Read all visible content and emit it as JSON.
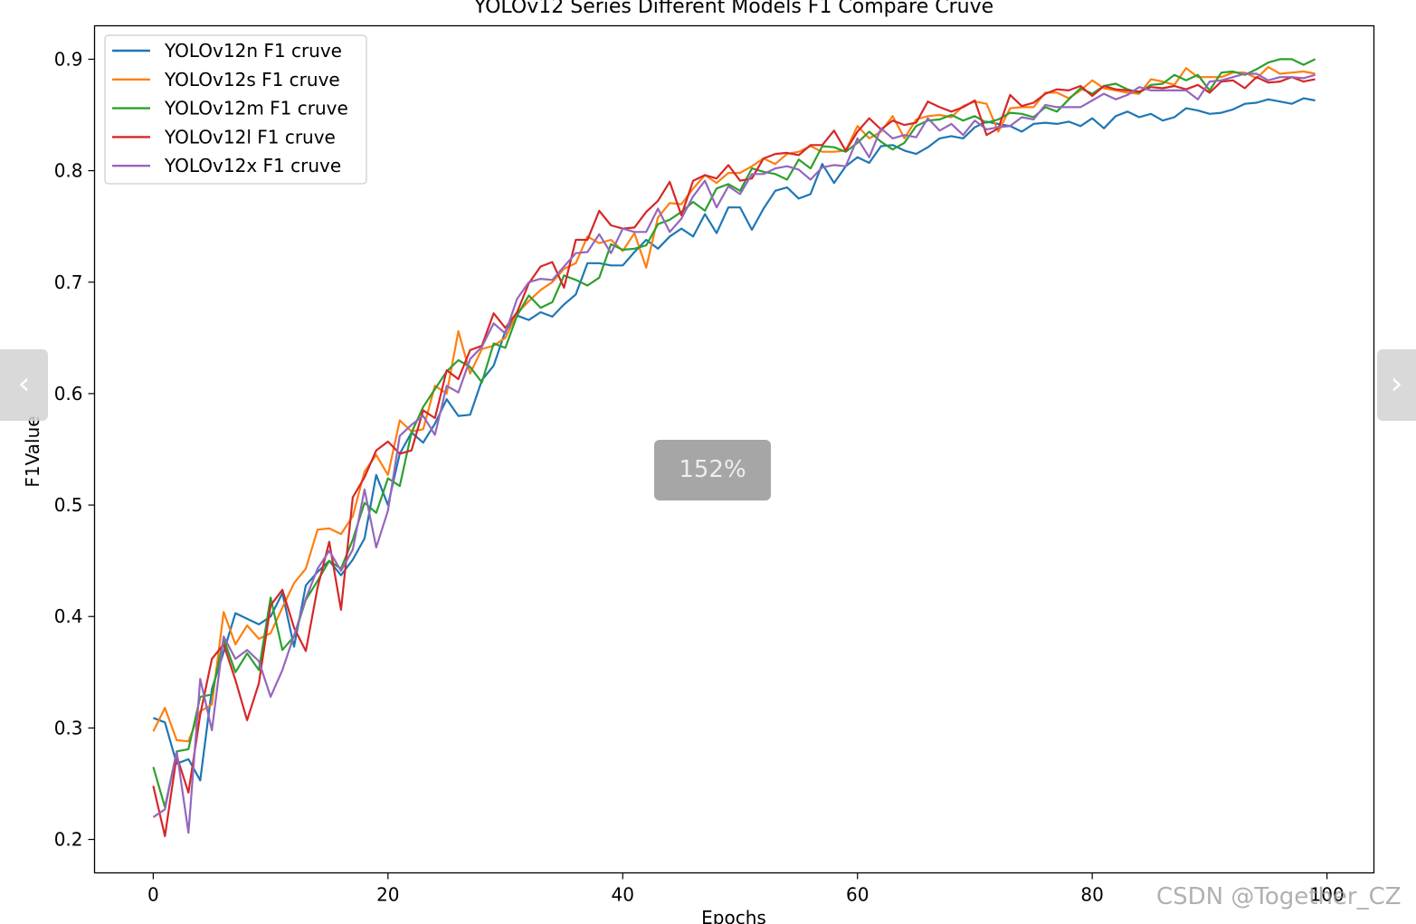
{
  "viewer": {
    "prev_arrow": "‹",
    "next_arrow": "›",
    "zoom_label": "152%",
    "watermark": "CSDN @Together_CZ"
  },
  "chart_data": {
    "type": "line",
    "title": "YOLOv12 Series Different Models F1 Compare Cruve",
    "xlabel": "Epochs",
    "ylabel": "F1Value",
    "xlim": [
      -5,
      104
    ],
    "ylim": [
      0.17,
      0.93
    ],
    "xticks": [
      0,
      20,
      40,
      60,
      80,
      100
    ],
    "yticks": [
      0.2,
      0.3,
      0.4,
      0.5,
      0.6,
      0.7,
      0.8,
      0.9
    ],
    "grid": false,
    "legend_position": "upper-left",
    "x": [
      0,
      1,
      2,
      3,
      4,
      5,
      6,
      7,
      8,
      9,
      10,
      11,
      12,
      13,
      14,
      15,
      16,
      17,
      18,
      19,
      20,
      21,
      22,
      23,
      24,
      25,
      26,
      27,
      28,
      29,
      30,
      31,
      32,
      33,
      34,
      35,
      36,
      37,
      38,
      39,
      40,
      41,
      42,
      43,
      44,
      45,
      46,
      47,
      48,
      49,
      50,
      51,
      52,
      53,
      54,
      55,
      56,
      57,
      58,
      59,
      60,
      61,
      62,
      63,
      64,
      65,
      66,
      67,
      68,
      69,
      70,
      71,
      72,
      73,
      74,
      75,
      76,
      77,
      78,
      79,
      80,
      81,
      82,
      83,
      84,
      85,
      86,
      87,
      88,
      89,
      90,
      91,
      92,
      93,
      94,
      95,
      96,
      97,
      98,
      99
    ],
    "series": [
      {
        "name": "YOLOv12n F1 cruve",
        "color": "#1f77b4",
        "values": [
          0.309,
          0.305,
          0.268,
          0.272,
          0.253,
          0.335,
          0.368,
          0.403,
          0.398,
          0.393,
          0.4,
          0.421,
          0.373,
          0.428,
          0.44,
          0.45,
          0.437,
          0.451,
          0.47,
          0.527,
          0.5,
          0.546,
          0.565,
          0.556,
          0.573,
          0.595,
          0.58,
          0.581,
          0.612,
          0.625,
          0.656,
          0.67,
          0.666,
          0.673,
          0.669,
          0.68,
          0.689,
          0.717,
          0.717,
          0.715,
          0.715,
          0.727,
          0.738,
          0.73,
          0.741,
          0.748,
          0.741,
          0.761,
          0.744,
          0.767,
          0.767,
          0.747,
          0.766,
          0.782,
          0.785,
          0.775,
          0.779,
          0.806,
          0.789,
          0.804,
          0.812,
          0.807,
          0.822,
          0.823,
          0.818,
          0.815,
          0.821,
          0.829,
          0.831,
          0.829,
          0.839,
          0.844,
          0.842,
          0.84,
          0.835,
          0.842,
          0.843,
          0.842,
          0.844,
          0.84,
          0.847,
          0.838,
          0.849,
          0.853,
          0.848,
          0.851,
          0.845,
          0.848,
          0.856,
          0.854,
          0.851,
          0.852,
          0.855,
          0.86,
          0.861,
          0.864,
          0.862,
          0.86,
          0.865,
          0.863
        ]
      },
      {
        "name": "YOLOv12s F1 cruve",
        "color": "#ff7f0e",
        "values": [
          0.297,
          0.318,
          0.289,
          0.288,
          0.315,
          0.321,
          0.404,
          0.375,
          0.392,
          0.38,
          0.385,
          0.408,
          0.43,
          0.443,
          0.478,
          0.479,
          0.474,
          0.49,
          0.53,
          0.545,
          0.527,
          0.576,
          0.566,
          0.568,
          0.607,
          0.6,
          0.656,
          0.618,
          0.64,
          0.643,
          0.65,
          0.672,
          0.683,
          0.693,
          0.7,
          0.712,
          0.717,
          0.741,
          0.735,
          0.738,
          0.728,
          0.744,
          0.713,
          0.758,
          0.771,
          0.77,
          0.784,
          0.796,
          0.789,
          0.798,
          0.798,
          0.804,
          0.811,
          0.806,
          0.815,
          0.817,
          0.822,
          0.817,
          0.817,
          0.818,
          0.84,
          0.829,
          0.835,
          0.849,
          0.829,
          0.846,
          0.849,
          0.85,
          0.848,
          0.858,
          0.862,
          0.86,
          0.835,
          0.856,
          0.857,
          0.857,
          0.87,
          0.87,
          0.865,
          0.872,
          0.881,
          0.874,
          0.872,
          0.87,
          0.869,
          0.882,
          0.88,
          0.877,
          0.892,
          0.884,
          0.884,
          0.884,
          0.888,
          0.888,
          0.883,
          0.893,
          0.887,
          0.888,
          0.889,
          0.887
        ]
      },
      {
        "name": "YOLOv12m F1 cruve",
        "color": "#2ca02c",
        "values": [
          0.265,
          0.229,
          0.279,
          0.281,
          0.328,
          0.33,
          0.38,
          0.35,
          0.367,
          0.352,
          0.417,
          0.37,
          0.382,
          0.415,
          0.432,
          0.45,
          0.443,
          0.469,
          0.502,
          0.493,
          0.524,
          0.517,
          0.565,
          0.588,
          0.604,
          0.62,
          0.63,
          0.624,
          0.61,
          0.645,
          0.641,
          0.67,
          0.688,
          0.677,
          0.682,
          0.706,
          0.702,
          0.697,
          0.704,
          0.734,
          0.729,
          0.73,
          0.733,
          0.752,
          0.756,
          0.763,
          0.772,
          0.764,
          0.784,
          0.788,
          0.782,
          0.802,
          0.799,
          0.797,
          0.792,
          0.81,
          0.802,
          0.822,
          0.821,
          0.817,
          0.825,
          0.835,
          0.826,
          0.819,
          0.825,
          0.84,
          0.845,
          0.846,
          0.85,
          0.845,
          0.849,
          0.843,
          0.846,
          0.852,
          0.851,
          0.848,
          0.857,
          0.853,
          0.864,
          0.874,
          0.869,
          0.876,
          0.878,
          0.873,
          0.87,
          0.877,
          0.878,
          0.886,
          0.881,
          0.886,
          0.872,
          0.888,
          0.889,
          0.886,
          0.891,
          0.897,
          0.9,
          0.9,
          0.895,
          0.9
        ]
      },
      {
        "name": "YOLOv12l F1 cruve",
        "color": "#d62728",
        "values": [
          0.248,
          0.203,
          0.275,
          0.242,
          0.312,
          0.362,
          0.375,
          0.343,
          0.307,
          0.34,
          0.41,
          0.424,
          0.39,
          0.369,
          0.426,
          0.467,
          0.406,
          0.507,
          0.525,
          0.549,
          0.557,
          0.546,
          0.549,
          0.585,
          0.578,
          0.621,
          0.613,
          0.639,
          0.643,
          0.672,
          0.659,
          0.673,
          0.699,
          0.714,
          0.718,
          0.695,
          0.738,
          0.738,
          0.764,
          0.751,
          0.748,
          0.749,
          0.763,
          0.773,
          0.79,
          0.76,
          0.791,
          0.796,
          0.793,
          0.805,
          0.791,
          0.793,
          0.811,
          0.815,
          0.816,
          0.814,
          0.823,
          0.823,
          0.836,
          0.818,
          0.835,
          0.847,
          0.837,
          0.845,
          0.841,
          0.843,
          0.862,
          0.857,
          0.853,
          0.857,
          0.863,
          0.832,
          0.838,
          0.868,
          0.858,
          0.861,
          0.869,
          0.873,
          0.872,
          0.876,
          0.867,
          0.876,
          0.873,
          0.872,
          0.871,
          0.875,
          0.874,
          0.876,
          0.873,
          0.877,
          0.87,
          0.88,
          0.881,
          0.874,
          0.884,
          0.879,
          0.88,
          0.884,
          0.88,
          0.882
        ]
      },
      {
        "name": "YOLOv12x F1 cruve",
        "color": "#9467bd",
        "values": [
          0.22,
          0.227,
          0.279,
          0.206,
          0.344,
          0.298,
          0.382,
          0.362,
          0.37,
          0.36,
          0.328,
          0.352,
          0.383,
          0.416,
          0.443,
          0.459,
          0.441,
          0.46,
          0.514,
          0.462,
          0.495,
          0.562,
          0.572,
          0.58,
          0.563,
          0.607,
          0.601,
          0.631,
          0.642,
          0.663,
          0.654,
          0.685,
          0.7,
          0.703,
          0.702,
          0.714,
          0.726,
          0.727,
          0.743,
          0.726,
          0.748,
          0.745,
          0.745,
          0.766,
          0.745,
          0.757,
          0.777,
          0.791,
          0.767,
          0.786,
          0.779,
          0.797,
          0.797,
          0.802,
          0.804,
          0.801,
          0.792,
          0.803,
          0.805,
          0.804,
          0.829,
          0.812,
          0.838,
          0.829,
          0.832,
          0.83,
          0.847,
          0.836,
          0.842,
          0.832,
          0.845,
          0.837,
          0.839,
          0.84,
          0.848,
          0.846,
          0.859,
          0.857,
          0.857,
          0.857,
          0.863,
          0.869,
          0.864,
          0.868,
          0.875,
          0.872,
          0.872,
          0.872,
          0.872,
          0.864,
          0.88,
          0.881,
          0.884,
          0.887,
          0.887,
          0.881,
          0.884,
          0.884,
          0.883,
          0.886
        ]
      }
    ]
  }
}
